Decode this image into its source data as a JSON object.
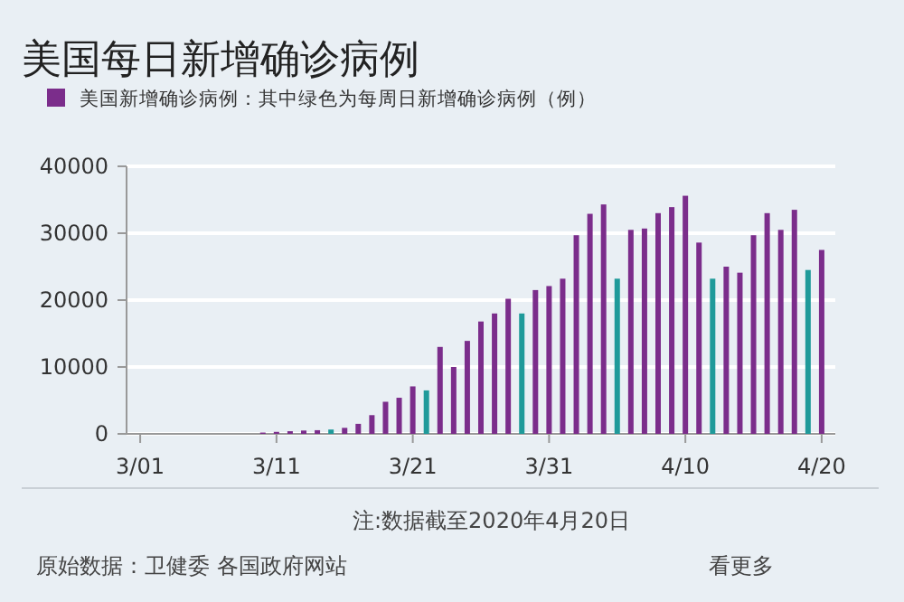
{
  "chart_data": {
    "type": "bar",
    "title": "美国每日新增确诊病例",
    "x": [
      "2020-03-10",
      "2020-03-11",
      "2020-03-12",
      "2020-03-13",
      "2020-03-14",
      "2020-03-15",
      "2020-03-16",
      "2020-03-17",
      "2020-03-18",
      "2020-03-19",
      "2020-03-20",
      "2020-03-21",
      "2020-03-22",
      "2020-03-23",
      "2020-03-24",
      "2020-03-25",
      "2020-03-26",
      "2020-03-27",
      "2020-03-28",
      "2020-03-29",
      "2020-03-30",
      "2020-03-31",
      "2020-04-01",
      "2020-04-02",
      "2020-04-03",
      "2020-04-04",
      "2020-04-05",
      "2020-04-06",
      "2020-04-07",
      "2020-04-08",
      "2020-04-09",
      "2020-04-10",
      "2020-04-11",
      "2020-04-12",
      "2020-04-13",
      "2020-04-14",
      "2020-04-15",
      "2020-04-16",
      "2020-04-17",
      "2020-04-18",
      "2020-04-19",
      "2020-04-20"
    ],
    "series": [
      {
        "name": "美国新增确诊病例：其中绿色为每周日新增确诊病例（例）",
        "color": "#7b2d8b",
        "values": [
          200,
          300,
          400,
          500,
          550,
          650,
          900,
          1500,
          2800,
          4800,
          5400,
          7100,
          6500,
          13000,
          10000,
          13900,
          16800,
          18000,
          20200,
          18000,
          21500,
          22100,
          23200,
          29700,
          32900,
          34300,
          23200,
          30500,
          30700,
          33000,
          33900,
          35600,
          28600,
          23200,
          25000,
          24100,
          29700,
          33000,
          30500,
          33500,
          24500,
          27500
        ],
        "colors": [
          "#7b2d8b",
          "#7b2d8b",
          "#7b2d8b",
          "#7b2d8b",
          "#7b2d8b",
          "#1f9a9a",
          "#7b2d8b",
          "#7b2d8b",
          "#7b2d8b",
          "#7b2d8b",
          "#7b2d8b",
          "#7b2d8b",
          "#1f9a9a",
          "#7b2d8b",
          "#7b2d8b",
          "#7b2d8b",
          "#7b2d8b",
          "#7b2d8b",
          "#7b2d8b",
          "#1f9a9a",
          "#7b2d8b",
          "#7b2d8b",
          "#7b2d8b",
          "#7b2d8b",
          "#7b2d8b",
          "#7b2d8b",
          "#1f9a9a",
          "#7b2d8b",
          "#7b2d8b",
          "#7b2d8b",
          "#7b2d8b",
          "#7b2d8b",
          "#7b2d8b",
          "#1f9a9a",
          "#7b2d8b",
          "#7b2d8b",
          "#7b2d8b",
          "#7b2d8b",
          "#7b2d8b",
          "#7b2d8b",
          "#1f9a9a",
          "#7b2d8b"
        ]
      }
    ],
    "xlim": [
      "2020-02-29",
      "2020-04-21"
    ],
    "xticks": [
      {
        "value": "2020-03-01",
        "label": "3/01"
      },
      {
        "value": "2020-03-11",
        "label": "3/11"
      },
      {
        "value": "2020-03-21",
        "label": "3/21"
      },
      {
        "value": "2020-03-31",
        "label": "3/31"
      },
      {
        "value": "2020-04-10",
        "label": "4/10"
      },
      {
        "value": "2020-04-20",
        "label": "4/20"
      }
    ],
    "ylim": [
      0,
      40000
    ],
    "yticks": [
      0,
      10000,
      20000,
      30000,
      40000
    ],
    "grid": "y",
    "legend": "top left",
    "annotations": [
      "注:数据截至2020年4月20日",
      "原始数据：卫健委 各国政府网站",
      "看更多"
    ]
  }
}
